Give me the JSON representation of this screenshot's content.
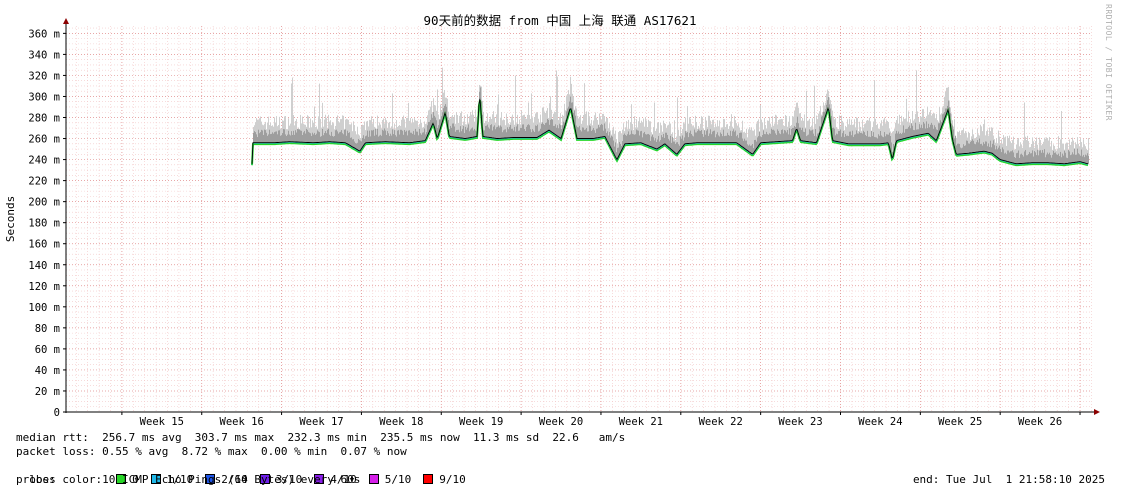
{
  "chart_data": {
    "type": "area",
    "title": "90天前的数据 from 中国 上海 联通 AS17621",
    "ylabel": "Seconds",
    "xlabel": "",
    "ylim": [
      0,
      367
    ],
    "y_ticks": [
      {
        "value": 0,
        "label": "0"
      },
      {
        "value": 20,
        "label": "20 m"
      },
      {
        "value": 40,
        "label": "40 m"
      },
      {
        "value": 60,
        "label": "60 m"
      },
      {
        "value": 80,
        "label": "80 m"
      },
      {
        "value": 100,
        "label": "100 m"
      },
      {
        "value": 120,
        "label": "120 m"
      },
      {
        "value": 140,
        "label": "140 m"
      },
      {
        "value": 160,
        "label": "160 m"
      },
      {
        "value": 180,
        "label": "180 m"
      },
      {
        "value": 200,
        "label": "200 m"
      },
      {
        "value": 220,
        "label": "220 m"
      },
      {
        "value": 240,
        "label": "240 m"
      },
      {
        "value": 260,
        "label": "260 m"
      },
      {
        "value": 280,
        "label": "280 m"
      },
      {
        "value": 300,
        "label": "300 m"
      },
      {
        "value": 320,
        "label": "320 m"
      },
      {
        "value": 340,
        "label": "340 m"
      },
      {
        "value": 360,
        "label": "360 m"
      }
    ],
    "week_labels": [
      "Week 15",
      "Week 16",
      "Week 17",
      "Week 18",
      "Week 19",
      "Week 20",
      "Week 21",
      "Week 22",
      "Week 23",
      "Week 24",
      "Week 25",
      "Week 26"
    ],
    "x_range_weeks": [
      14.3,
      27.15
    ],
    "data_start_week": 16.63,
    "grid": true,
    "median_rtt_ms": [
      [
        16.63,
        256
      ],
      [
        16.9,
        256
      ],
      [
        17.1,
        257
      ],
      [
        17.4,
        256
      ],
      [
        17.6,
        257
      ],
      [
        17.8,
        256
      ],
      [
        17.98,
        248
      ],
      [
        18.05,
        256
      ],
      [
        18.3,
        257
      ],
      [
        18.6,
        256
      ],
      [
        18.8,
        258
      ],
      [
        18.9,
        275
      ],
      [
        18.95,
        260
      ],
      [
        19.05,
        285
      ],
      [
        19.1,
        262
      ],
      [
        19.3,
        260
      ],
      [
        19.45,
        262
      ],
      [
        19.48,
        303
      ],
      [
        19.52,
        262
      ],
      [
        19.7,
        260
      ],
      [
        19.9,
        261
      ],
      [
        20.2,
        261
      ],
      [
        20.35,
        268
      ],
      [
        20.5,
        260
      ],
      [
        20.62,
        290
      ],
      [
        20.7,
        260
      ],
      [
        20.9,
        260
      ],
      [
        21.05,
        262
      ],
      [
        21.2,
        240
      ],
      [
        21.3,
        255
      ],
      [
        21.5,
        256
      ],
      [
        21.7,
        250
      ],
      [
        21.8,
        255
      ],
      [
        21.95,
        245
      ],
      [
        22.05,
        255
      ],
      [
        22.2,
        256
      ],
      [
        22.5,
        256
      ],
      [
        22.7,
        256
      ],
      [
        22.9,
        245
      ],
      [
        23.0,
        256
      ],
      [
        23.2,
        257
      ],
      [
        23.4,
        258
      ],
      [
        23.45,
        270
      ],
      [
        23.5,
        258
      ],
      [
        23.7,
        256
      ],
      [
        23.85,
        290
      ],
      [
        23.9,
        258
      ],
      [
        24.1,
        255
      ],
      [
        24.3,
        255
      ],
      [
        24.5,
        255
      ],
      [
        24.6,
        256
      ],
      [
        24.65,
        240
      ],
      [
        24.7,
        258
      ],
      [
        24.9,
        262
      ],
      [
        25.1,
        265
      ],
      [
        25.2,
        258
      ],
      [
        25.35,
        288
      ],
      [
        25.4,
        260
      ],
      [
        25.45,
        245
      ],
      [
        25.6,
        246
      ],
      [
        25.8,
        248
      ],
      [
        25.9,
        246
      ],
      [
        26.0,
        240
      ],
      [
        26.2,
        236
      ],
      [
        26.4,
        237
      ],
      [
        26.6,
        237
      ],
      [
        26.8,
        236
      ],
      [
        27.0,
        238
      ],
      [
        27.1,
        236
      ]
    ]
  },
  "stats": {
    "median_rtt": "median rtt:  256.7 ms avg  303.7 ms max  232.3 ms min  235.5 ms now  11.3 ms sd  22.6   am/s",
    "packet_loss": "packet loss: 0.55 % avg  8.72 % max  0.00 % min  0.07 % now",
    "loss_color_label": "loss color:",
    "loss_colors": [
      {
        "label": "0",
        "color": "#27d627"
      },
      {
        "label": "1/10",
        "color": "#1fb9e9"
      },
      {
        "label": "2/10",
        "color": "#1f56e9"
      },
      {
        "label": "3/10",
        "color": "#6e1fe9"
      },
      {
        "label": "4/10",
        "color": "#8a1fe9"
      },
      {
        "label": "5/10",
        "color": "#d51fe9"
      },
      {
        "label": "9/10",
        "color": "#ff0000"
      }
    ],
    "probe": "probe:       10 ICMP Echo Pings (64 Bytes) every 60s",
    "end": "end: Tue Jul  1 21:58:10 2025"
  },
  "watermark": "RRDTOOL / TOBI OETIKER"
}
